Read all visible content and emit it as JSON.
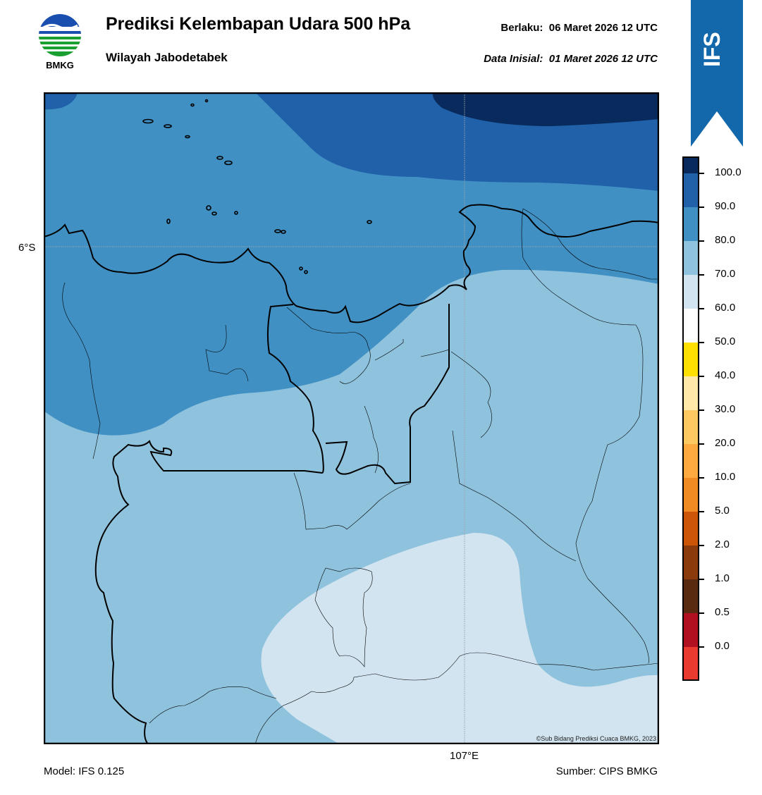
{
  "header": {
    "title": "Prediksi Kelembapan Udara 500 hPa",
    "subtitle": "Wilayah Jabodetabek",
    "valid": "Berlaku:  06 Maret 2026 12 UTC",
    "initial": "Data Inisial:  01 Maret 2026 12 UTC"
  },
  "logo": {
    "text": "BMKG",
    "icon": "bmkg-logo"
  },
  "ribbon": {
    "text": "IFS",
    "color": "#1268ab"
  },
  "map": {
    "lat_label": "6°S",
    "lon_label": "107°E",
    "copyright": "©Sub Bidang Prediksi Cuaca BMKG, 2023"
  },
  "colorbar": {
    "labels": [
      "100.0",
      "90.0",
      "80.0",
      "70.0",
      "60.0",
      "50.0",
      "40.0",
      "30.0",
      "20.0",
      "10.0",
      "5.0",
      "2.0",
      "1.0",
      "0.5",
      "0.0"
    ],
    "colors": [
      "#2b0a4d",
      "#082a5c",
      "#2161aa",
      "#4090c4",
      "#8fc2dd",
      "#d1e4f0",
      "#ffffff",
      "#ffe000",
      "#ffe8a8",
      "#ffc860",
      "#ffaa40",
      "#f08a22",
      "#cc5508",
      "#8b3a0c",
      "#5a2a10",
      "#b01020",
      "#e83a2f"
    ]
  },
  "footer": {
    "model": "Model: IFS 0.125",
    "source": "Sumber: CIPS BMKG"
  }
}
